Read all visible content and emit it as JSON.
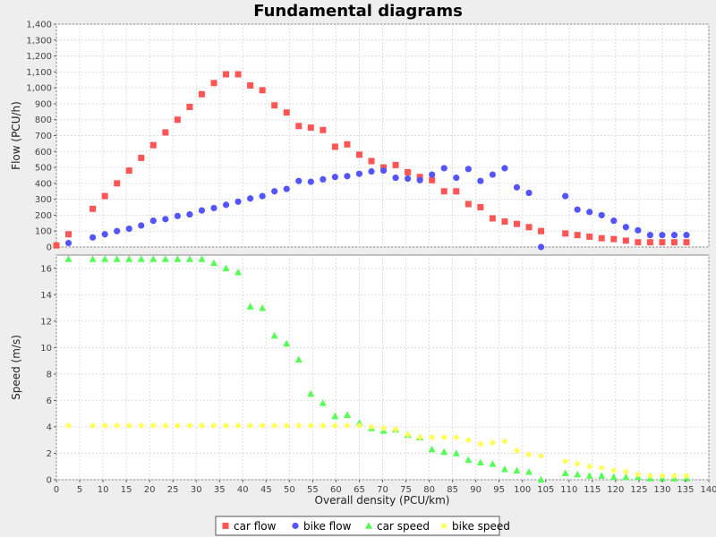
{
  "chart_data": {
    "type": "scatter",
    "title": "Fundamental diagrams",
    "xlabel": "Overall density (PCU/km)",
    "xlim": [
      0,
      140
    ],
    "xticks": [
      0,
      5,
      10,
      15,
      20,
      25,
      30,
      35,
      40,
      45,
      50,
      55,
      60,
      65,
      70,
      75,
      80,
      85,
      90,
      95,
      100,
      105,
      110,
      115,
      120,
      125,
      130,
      135,
      140
    ],
    "grid": true,
    "legend": "bottom",
    "panels": [
      {
        "ylabel": "Flow (PCU/h)",
        "ylim": [
          0,
          1400
        ],
        "yticks": [
          0,
          100,
          200,
          300,
          400,
          500,
          600,
          700,
          800,
          900,
          1000,
          1100,
          1200,
          1300,
          1400
        ],
        "ytick_labels": [
          "0",
          "100",
          "200",
          "300",
          "400",
          "500",
          "600",
          "700",
          "800",
          "900",
          "1,000",
          "1,100",
          "1,200",
          "1,300",
          "1,400"
        ],
        "series": [
          {
            "name": "car flow",
            "color": "#ff5555",
            "marker": "square",
            "x": [
              0,
              2.6,
              7.8,
              10.4,
              13,
              15.6,
              18.2,
              20.8,
              23.4,
              26,
              28.6,
              31.2,
              33.8,
              36.4,
              39,
              41.6,
              44.2,
              46.8,
              49.4,
              52,
              54.6,
              57.2,
              59.8,
              62.4,
              65,
              67.6,
              70.2,
              72.8,
              75.4,
              78,
              80.6,
              83.2,
              85.8,
              88.4,
              91,
              93.6,
              96.2,
              98.8,
              101.4,
              104,
              109.2,
              111.8,
              114.4,
              117,
              119.6,
              122.2,
              124.8,
              127.4,
              130,
              132.6,
              135.2
            ],
            "y": [
              10,
              80,
              240,
              320,
              400,
              480,
              560,
              640,
              720,
              800,
              880,
              960,
              1030,
              1085,
              1085,
              1015,
              985,
              890,
              845,
              760,
              750,
              735,
              630,
              645,
              580,
              540,
              500,
              515,
              470,
              440,
              420,
              350,
              350,
              270,
              250,
              180,
              160,
              145,
              125,
              100,
              85,
              75,
              65,
              55,
              50,
              40,
              30,
              30,
              30,
              30,
              30
            ]
          },
          {
            "name": "bike flow",
            "color": "#5555ff",
            "marker": "circle",
            "x": [
              2.6,
              7.8,
              10.4,
              13,
              15.6,
              18.2,
              20.8,
              23.4,
              26,
              28.6,
              31.2,
              33.8,
              36.4,
              39,
              41.6,
              44.2,
              46.8,
              49.4,
              52,
              54.6,
              57.2,
              59.8,
              62.4,
              65,
              67.6,
              70.2,
              72.8,
              75.4,
              78,
              80.6,
              83.2,
              85.8,
              88.4,
              91,
              93.6,
              96.2,
              98.8,
              101.4,
              104,
              109.2,
              111.8,
              114.4,
              117,
              119.6,
              122.2,
              124.8,
              127.4,
              130,
              132.6,
              135.2
            ],
            "y": [
              25,
              60,
              80,
              100,
              115,
              135,
              165,
              175,
              195,
              205,
              230,
              245,
              265,
              285,
              305,
              320,
              350,
              365,
              415,
              410,
              425,
              440,
              445,
              460,
              475,
              480,
              435,
              430,
              420,
              455,
              495,
              435,
              490,
              415,
              455,
              495,
              375,
              340,
              0,
              320,
              235,
              220,
              200,
              165,
              125,
              105,
              75,
              75,
              75,
              75
            ]
          }
        ]
      },
      {
        "ylabel": "Speed (m/s)",
        "ylim": [
          0,
          17
        ],
        "yticks": [
          0,
          2,
          4,
          6,
          8,
          10,
          12,
          14,
          16
        ],
        "ytick_labels": [
          "0",
          "2",
          "4",
          "6",
          "8",
          "10",
          "12",
          "14",
          "16"
        ],
        "series": [
          {
            "name": "car speed",
            "color": "#55ff55",
            "marker": "triangle",
            "x": [
              2.6,
              7.8,
              10.4,
              13,
              15.6,
              18.2,
              20.8,
              23.4,
              26,
              28.6,
              31.2,
              33.8,
              36.4,
              39,
              41.6,
              44.2,
              46.8,
              49.4,
              52,
              54.6,
              57.2,
              59.8,
              62.4,
              65,
              67.6,
              70.2,
              72.8,
              75.4,
              78,
              80.6,
              83.2,
              85.8,
              88.4,
              91,
              93.6,
              96.2,
              98.8,
              101.4,
              104,
              109.2,
              111.8,
              114.4,
              117,
              119.6,
              122.2,
              124.8,
              127.4,
              130,
              132.6,
              135.2
            ],
            "y": [
              16.7,
              16.7,
              16.7,
              16.7,
              16.7,
              16.7,
              16.7,
              16.7,
              16.7,
              16.7,
              16.7,
              16.4,
              16,
              15.7,
              13.1,
              13,
              10.9,
              10.3,
              9.1,
              6.5,
              5.8,
              4.8,
              4.9,
              4.3,
              3.9,
              3.7,
              3.8,
              3.4,
              3.2,
              2.3,
              2.1,
              2,
              1.5,
              1.3,
              1.2,
              0.8,
              0.7,
              0.6,
              0,
              0.5,
              0.4,
              0.3,
              0.3,
              0.2,
              0.2,
              0.2,
              0.1,
              0.1,
              0.1,
              0.1
            ]
          },
          {
            "name": "bike speed",
            "color": "#ffff55",
            "marker": "diamond",
            "x": [
              2.6,
              7.8,
              10.4,
              13,
              15.6,
              18.2,
              20.8,
              23.4,
              26,
              28.6,
              31.2,
              33.8,
              36.4,
              39,
              41.6,
              44.2,
              46.8,
              49.4,
              52,
              54.6,
              57.2,
              59.8,
              62.4,
              65,
              67.6,
              70.2,
              72.8,
              75.4,
              78,
              80.6,
              83.2,
              85.8,
              88.4,
              91,
              93.6,
              96.2,
              98.8,
              101.4,
              104,
              109.2,
              111.8,
              114.4,
              117,
              119.6,
              122.2,
              124.8,
              127.4,
              130,
              132.6,
              135.2
            ],
            "y": [
              4.1,
              4.1,
              4.1,
              4.1,
              4.1,
              4.1,
              4.1,
              4.1,
              4.1,
              4.1,
              4.1,
              4.1,
              4.1,
              4.1,
              4.1,
              4.1,
              4.1,
              4.1,
              4.1,
              4.1,
              4.1,
              4.1,
              4.1,
              4.1,
              4.0,
              3.9,
              3.8,
              3.4,
              3.2,
              3.2,
              3.2,
              3.2,
              3.0,
              2.7,
              2.8,
              2.9,
              2.2,
              1.9,
              1.8,
              1.4,
              1.2,
              1.0,
              0.9,
              0.7,
              0.6,
              0.4,
              0.3,
              0.3,
              0.3,
              0.3
            ]
          }
        ]
      }
    ]
  }
}
